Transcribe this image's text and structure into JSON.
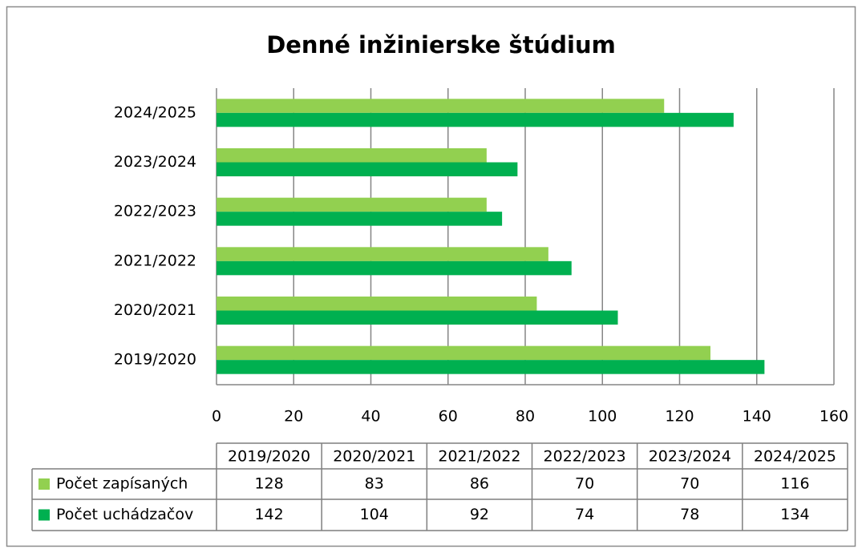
{
  "chart_data": {
    "type": "bar",
    "orientation": "horizontal",
    "title": "Denné inžinierske štúdium",
    "categories": [
      "2019/2020",
      "2020/2021",
      "2021/2022",
      "2022/2023",
      "2023/2024",
      "2024/2025"
    ],
    "series": [
      {
        "name": "Počet zapísaných",
        "color": "#92d050",
        "values": [
          128,
          83,
          86,
          70,
          70,
          116
        ]
      },
      {
        "name": "Počet uchádzačov",
        "color": "#00b050",
        "values": [
          142,
          104,
          92,
          74,
          78,
          134
        ]
      }
    ],
    "xlim": [
      0,
      160
    ],
    "xticks": [
      0,
      20,
      40,
      60,
      80,
      100,
      120,
      140,
      160
    ],
    "grid": true
  }
}
